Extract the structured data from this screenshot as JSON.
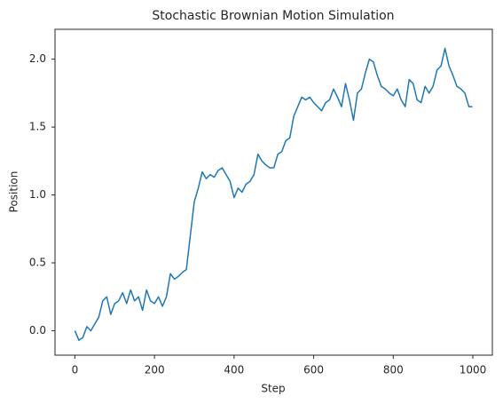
{
  "chart_data": {
    "type": "line",
    "title": "Stochastic Brownian Motion Simulation",
    "xlabel": "Step",
    "ylabel": "Position",
    "x": [
      0,
      10,
      20,
      30,
      40,
      50,
      60,
      70,
      80,
      90,
      100,
      110,
      120,
      130,
      140,
      150,
      160,
      170,
      180,
      190,
      200,
      210,
      220,
      230,
      240,
      250,
      260,
      270,
      280,
      290,
      300,
      310,
      320,
      330,
      340,
      350,
      360,
      370,
      380,
      390,
      400,
      410,
      420,
      430,
      440,
      450,
      460,
      470,
      480,
      490,
      500,
      510,
      520,
      530,
      540,
      550,
      560,
      570,
      580,
      590,
      600,
      610,
      620,
      630,
      640,
      650,
      660,
      670,
      680,
      690,
      700,
      710,
      720,
      730,
      740,
      750,
      760,
      770,
      780,
      790,
      800,
      810,
      820,
      830,
      840,
      850,
      860,
      870,
      880,
      890,
      900,
      910,
      920,
      930,
      940,
      950,
      960,
      970,
      980,
      990,
      999
    ],
    "series": [
      {
        "color": "#1f77b4",
        "values": [
          0.0,
          -0.07,
          -0.05,
          0.03,
          0.0,
          0.05,
          0.1,
          0.22,
          0.25,
          0.12,
          0.2,
          0.22,
          0.28,
          0.2,
          0.3,
          0.22,
          0.25,
          0.15,
          0.3,
          0.22,
          0.2,
          0.25,
          0.18,
          0.25,
          0.42,
          0.38,
          0.4,
          0.43,
          0.45,
          0.7,
          0.95,
          1.05,
          1.17,
          1.12,
          1.15,
          1.13,
          1.18,
          1.2,
          1.15,
          1.1,
          0.98,
          1.05,
          1.02,
          1.08,
          1.1,
          1.15,
          1.3,
          1.25,
          1.22,
          1.2,
          1.2,
          1.3,
          1.32,
          1.4,
          1.42,
          1.58,
          1.65,
          1.72,
          1.7,
          1.72,
          1.68,
          1.65,
          1.62,
          1.68,
          1.7,
          1.78,
          1.72,
          1.65,
          1.82,
          1.7,
          1.55,
          1.75,
          1.78,
          1.9,
          2.0,
          1.98,
          1.88,
          1.8,
          1.78,
          1.75,
          1.73,
          1.78,
          1.7,
          1.65,
          1.85,
          1.82,
          1.7,
          1.68,
          1.8,
          1.75,
          1.8,
          1.92,
          1.95,
          2.08,
          1.95,
          1.88,
          1.8,
          1.78,
          1.75,
          1.65,
          1.65
        ]
      }
    ],
    "xlim": [
      -50,
      1049
    ],
    "ylim": [
      -0.18,
      2.22
    ],
    "xticks": [
      0,
      200,
      400,
      600,
      800,
      1000
    ],
    "yticks": [
      {
        "value": 0,
        "label": "0.0"
      },
      0.5,
      {
        "value": 1,
        "label": "1.0"
      },
      1.5,
      {
        "value": 2,
        "label": "2.0"
      }
    ],
    "grid": false
  }
}
